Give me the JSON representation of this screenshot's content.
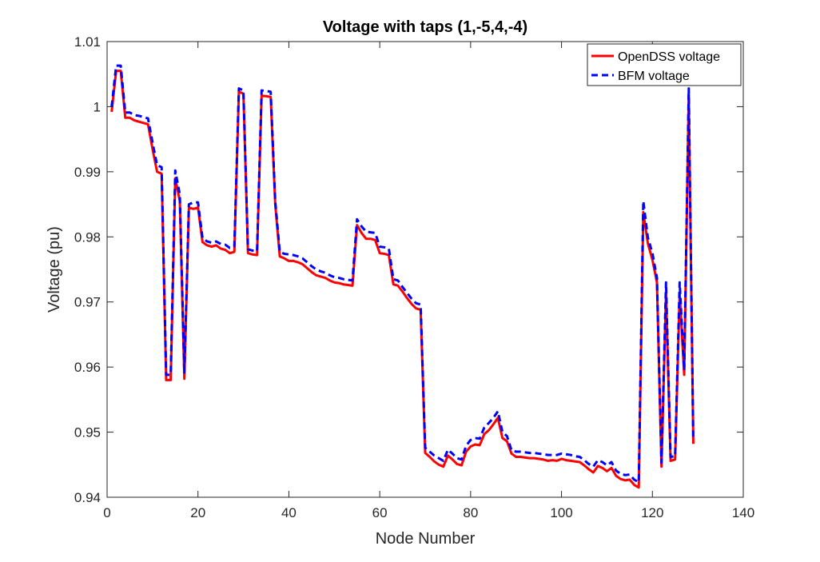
{
  "chart_data": {
    "type": "line",
    "title": "Voltage with taps (1,-5,4,-4)",
    "xlabel": "Node Number",
    "ylabel": "Voltage (pu)",
    "xlim": [
      0,
      140
    ],
    "ylim": [
      0.94,
      1.01
    ],
    "xticks": [
      0,
      20,
      40,
      60,
      80,
      100,
      120,
      140
    ],
    "yticks": [
      0.94,
      0.95,
      0.96,
      0.97,
      0.98,
      0.99,
      1.0,
      1.01
    ],
    "xtick_labels": [
      "0",
      "20",
      "40",
      "60",
      "80",
      "100",
      "120",
      "140"
    ],
    "ytick_labels": [
      "0.94",
      "0.95",
      "0.96",
      "0.97",
      "0.98",
      "0.99",
      "1",
      "1.01"
    ],
    "grid": false,
    "legend_position": "top-right",
    "series": [
      {
        "name": "OpenDSS voltage",
        "color": "#ff0000",
        "style": "solid",
        "x": [
          1,
          2,
          3,
          4,
          5,
          6,
          7,
          8,
          9,
          10,
          11,
          12,
          13,
          14,
          15,
          16,
          17,
          18,
          19,
          20,
          21,
          22,
          23,
          24,
          25,
          26,
          27,
          28,
          29,
          30,
          31,
          32,
          33,
          34,
          35,
          36,
          37,
          38,
          39,
          40,
          41,
          42,
          43,
          44,
          45,
          46,
          47,
          48,
          49,
          50,
          51,
          52,
          53,
          54,
          55,
          56,
          57,
          58,
          59,
          60,
          61,
          62,
          63,
          64,
          65,
          66,
          67,
          68,
          69,
          70,
          71,
          72,
          73,
          74,
          75,
          76,
          77,
          78,
          79,
          80,
          81,
          82,
          83,
          84,
          85,
          86,
          87,
          88,
          89,
          90,
          91,
          92,
          93,
          94,
          95,
          96,
          97,
          98,
          99,
          100,
          101,
          102,
          103,
          104,
          105,
          106,
          107,
          108,
          109,
          110,
          111,
          112,
          113,
          114,
          115,
          116,
          117,
          118,
          119,
          120,
          121,
          122,
          123,
          124,
          125,
          126,
          127,
          128,
          129
        ],
        "values": [
          0.9992,
          1.0055,
          1.0055,
          0.9983,
          0.9983,
          0.9979,
          0.9977,
          0.9975,
          0.9973,
          0.9935,
          0.99,
          0.9897,
          0.958,
          0.958,
          0.989,
          0.9855,
          0.9582,
          0.9845,
          0.9843,
          0.9845,
          0.9792,
          0.9787,
          0.9785,
          0.9787,
          0.9782,
          0.978,
          0.9775,
          0.9777,
          1.0023,
          1.002,
          0.9775,
          0.9773,
          0.9772,
          1.0017,
          1.0016,
          1.0015,
          0.985,
          0.977,
          0.9767,
          0.9763,
          0.9763,
          0.9761,
          0.9758,
          0.9752,
          0.9746,
          0.9741,
          0.9739,
          0.9737,
          0.9733,
          0.973,
          0.9729,
          0.9727,
          0.9726,
          0.9725,
          0.9818,
          0.9806,
          0.9797,
          0.9797,
          0.9795,
          0.9775,
          0.9774,
          0.9772,
          0.9727,
          0.9725,
          0.9716,
          0.9706,
          0.9697,
          0.969,
          0.9688,
          0.9468,
          0.9462,
          0.9455,
          0.945,
          0.9447,
          0.9464,
          0.9458,
          0.9451,
          0.9449,
          0.947,
          0.9478,
          0.9481,
          0.948,
          0.9497,
          0.9503,
          0.9512,
          0.9522,
          0.9491,
          0.9486,
          0.9467,
          0.9462,
          0.9462,
          0.9461,
          0.946,
          0.946,
          0.9459,
          0.9458,
          0.9456,
          0.9457,
          0.9456,
          0.9459,
          0.9457,
          0.9456,
          0.9455,
          0.9454,
          0.9449,
          0.9443,
          0.9438,
          0.9448,
          0.9445,
          0.944,
          0.9445,
          0.9433,
          0.9428,
          0.9426,
          0.9427,
          0.9419,
          0.9415,
          0.9838,
          0.979,
          0.9765,
          0.973,
          0.9447,
          0.9713,
          0.9456,
          0.9458,
          0.9713,
          0.9588,
          1.0018,
          0.9482
        ]
      },
      {
        "name": "BFM voltage",
        "color": "#0000ff",
        "style": "dashed",
        "x": [
          1,
          2,
          3,
          4,
          5,
          6,
          7,
          8,
          9,
          10,
          11,
          12,
          13,
          14,
          15,
          16,
          17,
          18,
          19,
          20,
          21,
          22,
          23,
          24,
          25,
          26,
          27,
          28,
          29,
          30,
          31,
          32,
          33,
          34,
          35,
          36,
          37,
          38,
          39,
          40,
          41,
          42,
          43,
          44,
          45,
          46,
          47,
          48,
          49,
          50,
          51,
          52,
          53,
          54,
          55,
          56,
          57,
          58,
          59,
          60,
          61,
          62,
          63,
          64,
          65,
          66,
          67,
          68,
          69,
          70,
          71,
          72,
          73,
          74,
          75,
          76,
          77,
          78,
          79,
          80,
          81,
          82,
          83,
          84,
          85,
          86,
          87,
          88,
          89,
          90,
          91,
          92,
          93,
          94,
          95,
          96,
          97,
          98,
          99,
          100,
          101,
          102,
          103,
          104,
          105,
          106,
          107,
          108,
          109,
          110,
          111,
          112,
          113,
          114,
          115,
          116,
          117,
          118,
          119,
          120,
          121,
          122,
          123,
          124,
          125,
          126,
          127,
          128,
          129
        ],
        "values": [
          1.0,
          1.0063,
          1.0063,
          0.9991,
          0.9991,
          0.9987,
          0.9986,
          0.9984,
          0.9982,
          0.9945,
          0.991,
          0.9907,
          0.9588,
          0.9588,
          0.9902,
          0.9865,
          0.959,
          0.985,
          0.9853,
          0.9853,
          0.9798,
          0.9793,
          0.9791,
          0.9793,
          0.9789,
          0.9788,
          0.9783,
          0.9785,
          1.0028,
          1.0025,
          0.9781,
          0.9779,
          0.9778,
          1.0025,
          1.0024,
          1.0023,
          0.9855,
          0.9777,
          0.9774,
          0.9773,
          0.9772,
          0.977,
          0.9767,
          0.9761,
          0.9755,
          0.975,
          0.9747,
          0.9745,
          0.9741,
          0.9738,
          0.9737,
          0.9735,
          0.9734,
          0.9733,
          0.9827,
          0.9816,
          0.9808,
          0.9807,
          0.9806,
          0.9785,
          0.9784,
          0.9782,
          0.9735,
          0.9733,
          0.9723,
          0.9714,
          0.9705,
          0.9698,
          0.9696,
          0.9476,
          0.947,
          0.9464,
          0.946,
          0.9456,
          0.9473,
          0.9467,
          0.946,
          0.9458,
          0.9479,
          0.9488,
          0.9491,
          0.949,
          0.9507,
          0.9514,
          0.9522,
          0.9532,
          0.95,
          0.9494,
          0.9472,
          0.947,
          0.947,
          0.9469,
          0.9468,
          0.9468,
          0.9467,
          0.9466,
          0.9465,
          0.9465,
          0.9465,
          0.9467,
          0.9466,
          0.9465,
          0.9463,
          0.9462,
          0.9457,
          0.9451,
          0.9447,
          0.9457,
          0.9454,
          0.9449,
          0.9454,
          0.9441,
          0.9436,
          0.9434,
          0.9435,
          0.9427,
          0.9423,
          0.9855,
          0.9799,
          0.9775,
          0.9737,
          0.9453,
          0.973,
          0.9462,
          0.9463,
          0.973,
          0.9595,
          1.0028,
          0.9487
        ]
      }
    ]
  }
}
